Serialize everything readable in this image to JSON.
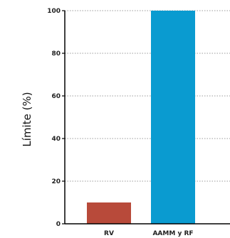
{
  "chart_data": {
    "type": "bar",
    "title": "",
    "xlabel": "",
    "ylabel": "Límite (%)",
    "categories": [
      "RV",
      "AAMM y RF"
    ],
    "values": [
      10,
      100
    ],
    "bar_colors": [
      "#b84a3a",
      "#0a9bd0"
    ],
    "ylim": [
      0,
      100
    ],
    "yticks": [
      0,
      20,
      40,
      60,
      80,
      100
    ],
    "ytick_labels": [
      "0",
      "20",
      "40",
      "60",
      "80",
      "100"
    ],
    "grid": "horizontal dotted",
    "legend": "none"
  }
}
